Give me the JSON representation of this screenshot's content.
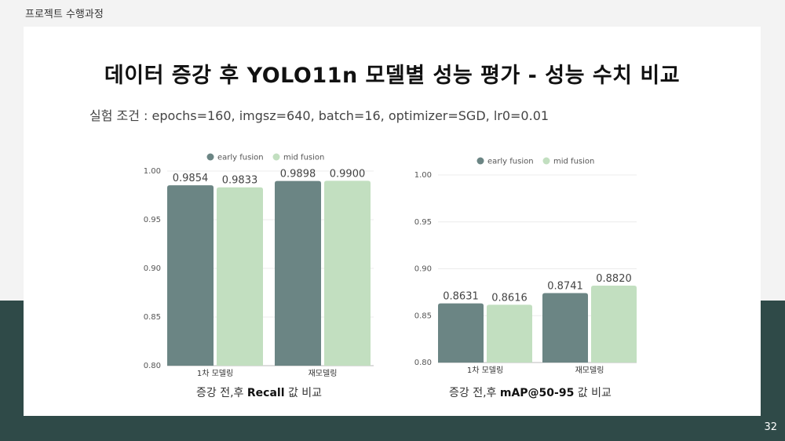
{
  "slide": {
    "section_label": "프로젝트 수행과정",
    "title": "데이터 증강 후 YOLO11n 모델별 성능 평가 - 성능 수치 비교",
    "conditions": "실험 조건 :  epochs=160, imgsz=640, batch=16, optimizer=SGD, lr0=0.01",
    "page_number": "32"
  },
  "colors": {
    "early_fusion": "#6b8584",
    "mid_fusion": "#c2dfc0",
    "band": "#2f4a48"
  },
  "chart_data": [
    {
      "type": "bar",
      "caption_prefix": "증강 전,후 ",
      "caption_bold": "Recall",
      "caption_suffix": " 값 비교",
      "categories": [
        "1차 모델링",
        "재모델링"
      ],
      "series": [
        {
          "name": "early fusion",
          "values": [
            0.9854,
            0.9898
          ],
          "labels": [
            "0.9854",
            "0.9898"
          ]
        },
        {
          "name": "mid fusion",
          "values": [
            0.9833,
            0.99
          ],
          "labels": [
            "0.9833",
            "0.9900"
          ]
        }
      ],
      "ylim": [
        0.8,
        1.0
      ],
      "yticks": [
        "0.80",
        "0.85",
        "0.90",
        "0.95",
        "1.00"
      ],
      "grid": true,
      "legend": "top"
    },
    {
      "type": "bar",
      "caption_prefix": "증강 전,후 ",
      "caption_bold": "mAP@50-95",
      "caption_suffix": " 값 비교",
      "categories": [
        "1차 모델링",
        "재모델링"
      ],
      "series": [
        {
          "name": "early fusion",
          "values": [
            0.8631,
            0.8741
          ],
          "labels": [
            "0.8631",
            "0.8741"
          ]
        },
        {
          "name": "mid fusion",
          "values": [
            0.8616,
            0.882
          ],
          "labels": [
            "0.8616",
            "0.8820"
          ]
        }
      ],
      "ylim": [
        0.8,
        1.0
      ],
      "yticks": [
        "0.80",
        "0.85",
        "0.90",
        "0.95",
        "1.00"
      ],
      "grid": true,
      "legend": "top"
    }
  ]
}
